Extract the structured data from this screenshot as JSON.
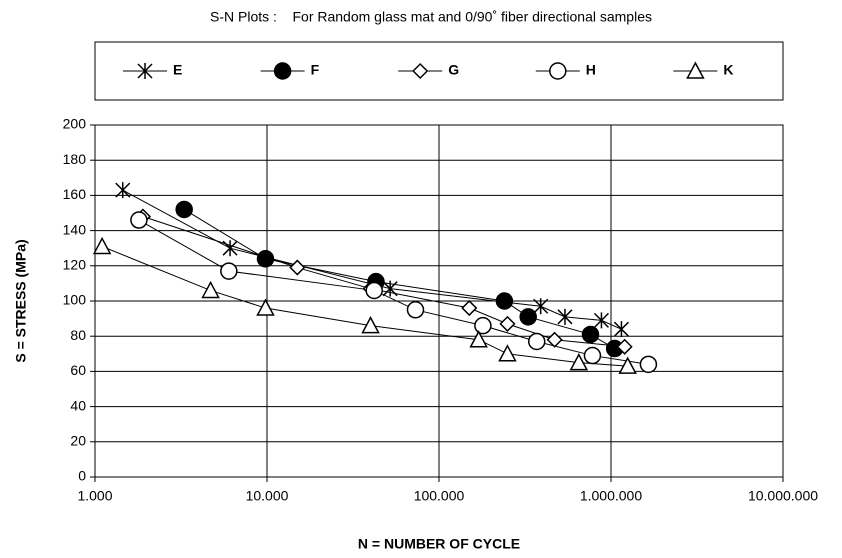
{
  "chart_data": {
    "type": "scatter",
    "title": "S-N Plots :    For Random glass mat and 0/90˚ fiber directional samples",
    "x_label": "N = NUMBER OF CYCLE",
    "y_label": "S = STRESS (MPa)",
    "x_log": true,
    "grid": true,
    "legend": "top",
    "xlim": [
      1000,
      10000000
    ],
    "xticks": [
      {
        "value": 1000,
        "label": "1.000"
      },
      {
        "value": 10000,
        "label": "10.000"
      },
      {
        "value": 100000,
        "label": "100.000"
      },
      {
        "value": 1000000,
        "label": "1.000.000"
      },
      {
        "value": 10000000,
        "label": "10.000.000"
      }
    ],
    "ylim": [
      0,
      200
    ],
    "yticks": [
      0,
      20,
      40,
      60,
      80,
      100,
      120,
      140,
      160,
      180,
      200
    ],
    "series": [
      {
        "name": "E",
        "color": "#000000",
        "marker": "asterisk",
        "x": [
          1450,
          6100,
          52000,
          390000,
          540000,
          880000,
          1150000
        ],
        "values": [
          163,
          130,
          107,
          97,
          91,
          89,
          84
        ]
      },
      {
        "name": "F",
        "color": "#000000",
        "marker": "filled-circle",
        "x": [
          3300,
          9800,
          43000,
          240000,
          330000,
          760000,
          1050000
        ],
        "values": [
          152,
          124,
          111,
          100,
          91,
          81,
          73
        ]
      },
      {
        "name": "G",
        "color": "#000000",
        "marker": "diamond",
        "x": [
          1900,
          15000,
          40000,
          150000,
          250000,
          470000,
          1200000
        ],
        "values": [
          148,
          119,
          107,
          96,
          87,
          78,
          74
        ]
      },
      {
        "name": "H",
        "color": "#000000",
        "marker": "circle",
        "x": [
          1800,
          6000,
          42000,
          73000,
          180000,
          370000,
          780000,
          1650000
        ],
        "values": [
          146,
          117,
          106,
          95,
          86,
          77,
          69,
          64
        ]
      },
      {
        "name": "K",
        "color": "#000000",
        "marker": "triangle",
        "x": [
          1100,
          4700,
          9800,
          40000,
          170000,
          250000,
          650000,
          1250000
        ],
        "values": [
          131,
          106,
          96,
          86,
          78,
          70,
          65,
          63
        ]
      }
    ]
  }
}
